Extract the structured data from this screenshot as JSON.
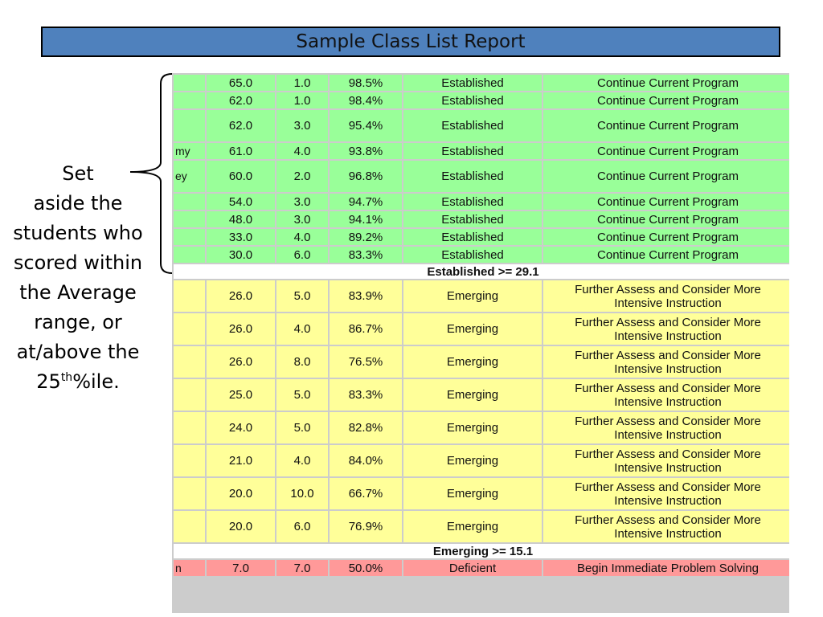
{
  "title": "Sample Class List Report",
  "side_note": {
    "line1": "Set",
    "line2": "aside the",
    "line3": "students who",
    "line4": "scored within",
    "line5": "the Average",
    "line6": "range, or",
    "line7": "at/above the",
    "line8_pre": "25",
    "line8_sup": "th",
    "line8_post": "%ile."
  },
  "table": {
    "established_rows": [
      {
        "name": "",
        "score": "65.0",
        "errors": "1.0",
        "accuracy": "98.5%",
        "level": "Established",
        "rec": "Continue Current Program"
      },
      {
        "name": "",
        "score": "62.0",
        "errors": "1.0",
        "accuracy": "98.4%",
        "level": "Established",
        "rec": "Continue Current Program"
      },
      {
        "name": "",
        "score": "62.0",
        "errors": "3.0",
        "accuracy": "95.4%",
        "level": "Established",
        "rec": "Continue Current Program"
      },
      {
        "name": "my",
        "score": "61.0",
        "errors": "4.0",
        "accuracy": "93.8%",
        "level": "Established",
        "rec": "Continue Current Program"
      },
      {
        "name": "ey",
        "score": "60.0",
        "errors": "2.0",
        "accuracy": "96.8%",
        "level": "Established",
        "rec": "Continue Current Program"
      },
      {
        "name": "",
        "score": "54.0",
        "errors": "3.0",
        "accuracy": "94.7%",
        "level": "Established",
        "rec": "Continue Current Program"
      },
      {
        "name": "",
        "score": "48.0",
        "errors": "3.0",
        "accuracy": "94.1%",
        "level": "Established",
        "rec": "Continue Current Program"
      },
      {
        "name": "",
        "score": "33.0",
        "errors": "4.0",
        "accuracy": "89.2%",
        "level": "Established",
        "rec": "Continue Current Program"
      },
      {
        "name": "",
        "score": "30.0",
        "errors": "6.0",
        "accuracy": "83.3%",
        "level": "Established",
        "rec": "Continue Current Program"
      }
    ],
    "established_cutoff": "Established >= 29.1",
    "emerging_rows": [
      {
        "name": "",
        "score": "26.0",
        "errors": "5.0",
        "accuracy": "83.9%",
        "level": "Emerging",
        "rec1": "Further Assess and Consider More",
        "rec2": "Intensive Instruction"
      },
      {
        "name": "",
        "score": "26.0",
        "errors": "4.0",
        "accuracy": "86.7%",
        "level": "Emerging",
        "rec1": "Further Assess and Consider More",
        "rec2": "Intensive Instruction"
      },
      {
        "name": "",
        "score": "26.0",
        "errors": "8.0",
        "accuracy": "76.5%",
        "level": "Emerging",
        "rec1": "Further Assess and Consider More",
        "rec2": "Intensive Instruction"
      },
      {
        "name": "",
        "score": "25.0",
        "errors": "5.0",
        "accuracy": "83.3%",
        "level": "Emerging",
        "rec1": "Further Assess and Consider More",
        "rec2": "Intensive Instruction"
      },
      {
        "name": "",
        "score": "24.0",
        "errors": "5.0",
        "accuracy": "82.8%",
        "level": "Emerging",
        "rec1": "Further Assess and Consider More",
        "rec2": "Intensive Instruction"
      },
      {
        "name": "",
        "score": "21.0",
        "errors": "4.0",
        "accuracy": "84.0%",
        "level": "Emerging",
        "rec1": "Further Assess and Consider More",
        "rec2": "Intensive Instruction"
      },
      {
        "name": "",
        "score": "20.0",
        "errors": "10.0",
        "accuracy": "66.7%",
        "level": "Emerging",
        "rec1": "Further Assess and Consider More",
        "rec2": "Intensive Instruction"
      },
      {
        "name": "",
        "score": "20.0",
        "errors": "6.0",
        "accuracy": "76.9%",
        "level": "Emerging",
        "rec1": "Further Assess and Consider More",
        "rec2": "Intensive Instruction"
      }
    ],
    "emerging_cutoff": "Emerging >= 15.1",
    "deficient_rows": [
      {
        "name": "n",
        "score": "7.0",
        "errors": "7.0",
        "accuracy": "50.0%",
        "level": "Deficient",
        "rec": "Begin Immediate Problem Solving"
      }
    ]
  },
  "colors": {
    "title_bar": "#4f81bd",
    "established": "#99ff99",
    "emerging": "#ffff99",
    "deficient": "#ff9999"
  }
}
